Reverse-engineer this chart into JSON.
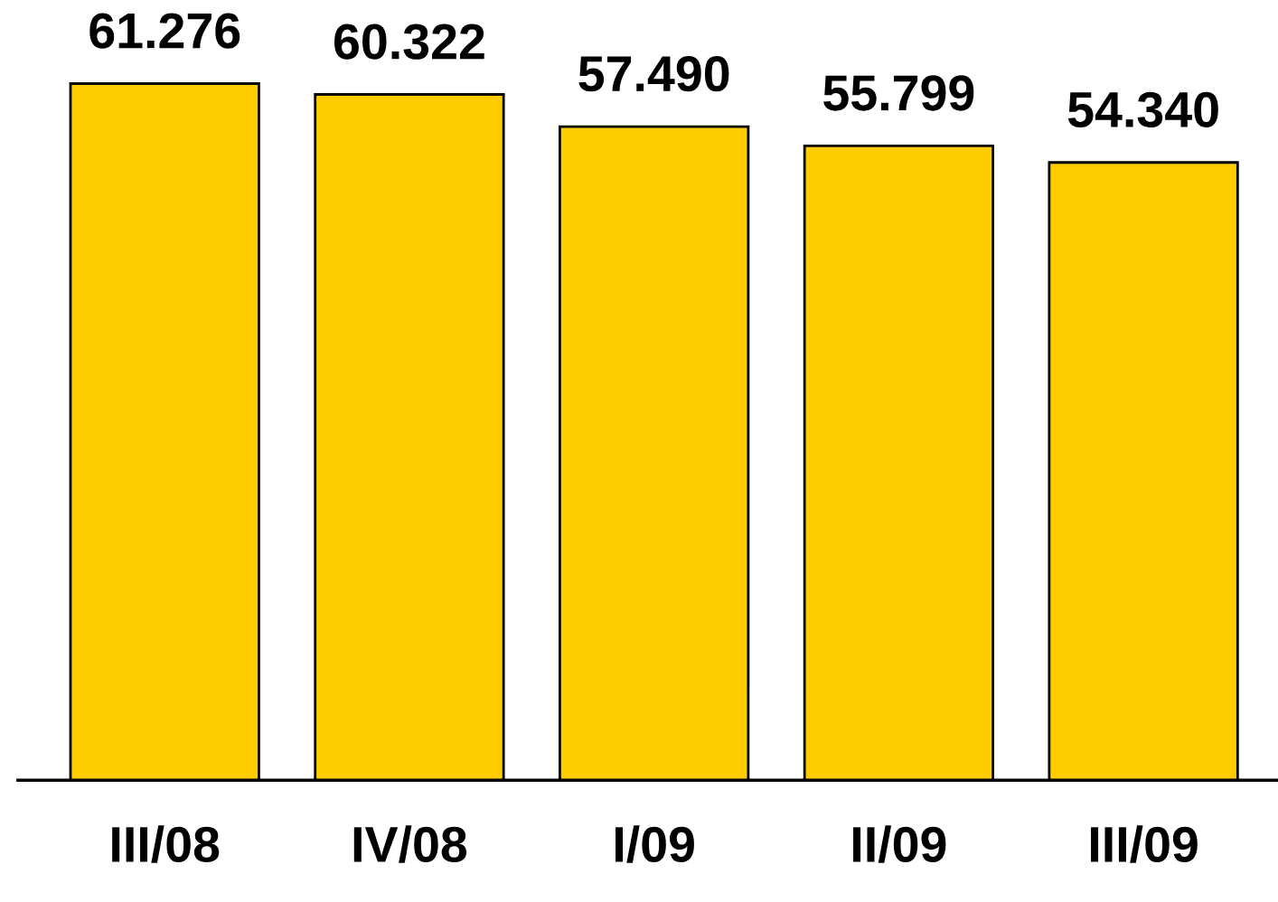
{
  "chart_data": {
    "type": "bar",
    "categories": [
      "III/08",
      "IV/08",
      "I/09",
      "II/09",
      "III/09"
    ],
    "values": [
      61.276,
      60.322,
      57.49,
      55.799,
      54.34
    ],
    "value_labels": [
      "61.276",
      "60.322",
      "57.490",
      "55.799",
      "54.340"
    ],
    "color": "#ffcc00",
    "tick_labels": "x",
    "grid": false,
    "legend": false
  }
}
